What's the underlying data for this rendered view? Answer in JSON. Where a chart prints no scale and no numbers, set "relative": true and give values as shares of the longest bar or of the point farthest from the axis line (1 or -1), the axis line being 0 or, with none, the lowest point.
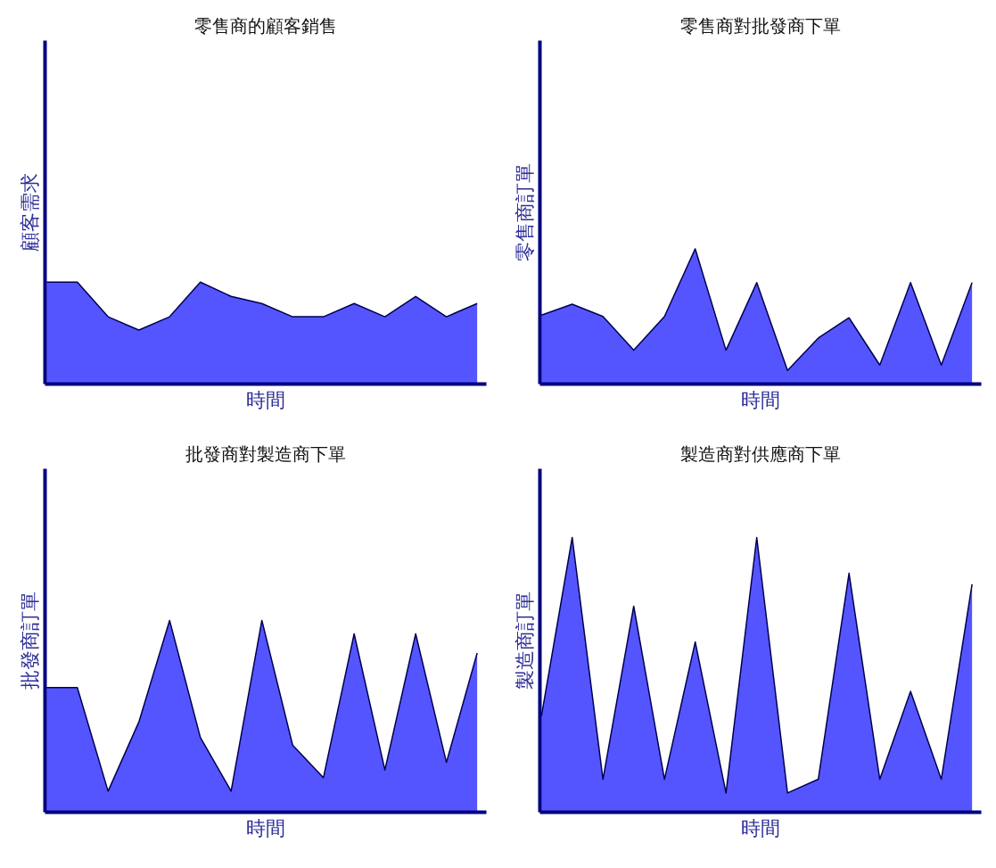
{
  "chart_data": [
    {
      "type": "area",
      "title": "零售商的顧客銷售",
      "xlabel": "時間",
      "ylabel": "顧客需求",
      "relative": true,
      "tick_labels": false,
      "categories": [
        null,
        null,
        null,
        null,
        null,
        null,
        null,
        null,
        null,
        null,
        null,
        null,
        null,
        null,
        null
      ],
      "series": [
        {
          "color": "#5555ff",
          "values": [
            1,
            1,
            0.66,
            0.53,
            0.66,
            1,
            0.86,
            0.79,
            0.66,
            0.66,
            0.79,
            0.66,
            0.86,
            0.66,
            0.79
          ]
        }
      ]
    },
    {
      "type": "area",
      "title": "零售商對批發商下單",
      "xlabel": "時間",
      "ylabel": "零售商訂單",
      "relative": true,
      "tick_labels": false,
      "categories": [
        null,
        null,
        null,
        null,
        null,
        null,
        null,
        null,
        null,
        null,
        null,
        null,
        null,
        null,
        null
      ],
      "series": [
        {
          "color": "#5555ff",
          "values": [
            0.51,
            0.59,
            0.5,
            0.25,
            0.5,
            1,
            0.25,
            0.75,
            0.1,
            0.34,
            0.49,
            0.14,
            0.75,
            0.14,
            0.75
          ]
        }
      ]
    },
    {
      "type": "area",
      "title": "批發商對製造商下單",
      "xlabel": "時間",
      "ylabel": "批發商訂單",
      "relative": true,
      "tick_labels": false,
      "categories": [
        null,
        null,
        null,
        null,
        null,
        null,
        null,
        null,
        null,
        null,
        null,
        null,
        null,
        null,
        null
      ],
      "series": [
        {
          "color": "#5555ff",
          "values": [
            0.65,
            0.65,
            0.11,
            0.47,
            1,
            0.39,
            0.11,
            1,
            0.35,
            0.18,
            0.93,
            0.22,
            0.93,
            0.26,
            0.83
          ]
        }
      ]
    },
    {
      "type": "area",
      "title": "製造商對供應商下單",
      "xlabel": "時間",
      "ylabel": "製造商訂單",
      "relative": true,
      "tick_labels": false,
      "categories": [
        null,
        null,
        null,
        null,
        null,
        null,
        null,
        null,
        null,
        null,
        null,
        null,
        null,
        null,
        null
      ],
      "series": [
        {
          "color": "#5555ff",
          "values": [
            0.35,
            1,
            0.12,
            0.75,
            0.12,
            0.62,
            0.07,
            1,
            0.07,
            0.12,
            0.87,
            0.12,
            0.44,
            0.12,
            0.83
          ]
        }
      ]
    }
  ]
}
